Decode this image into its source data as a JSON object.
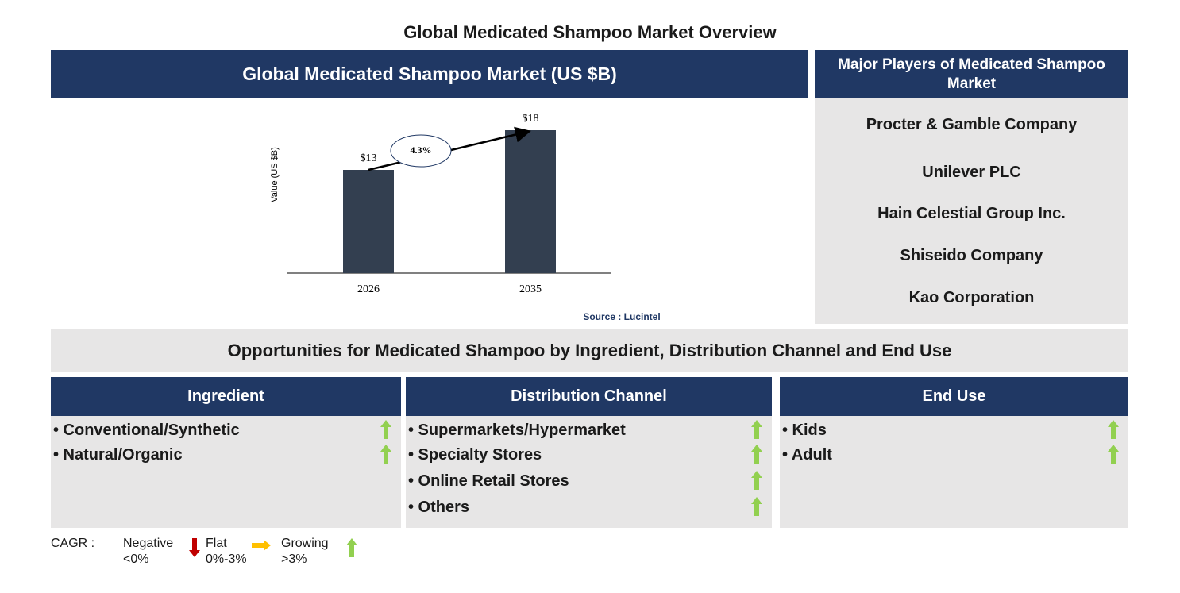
{
  "title": "Global Medicated Shampoo Market Overview",
  "chart_data": {
    "type": "bar",
    "title": "Global Medicated Shampoo Market (US $B)",
    "y_label": "Value (US $B)",
    "categories": [
      "2026",
      "2035"
    ],
    "values": [
      13,
      18
    ],
    "value_labels": [
      "$13",
      "$18"
    ],
    "color": "#333f50",
    "cagr_label": "4.3%",
    "source": "Source : Lucintel"
  },
  "players": {
    "title": "Major Players of Medicated Shampoo Market",
    "items": [
      "Procter & Gamble Company",
      "Unilever PLC",
      "Hain Celestial Group Inc.",
      "Shiseido Company",
      "Kao Corporation"
    ]
  },
  "opportunities": {
    "title": "Opportunities for Medicated Shampoo by Ingredient, Distribution Channel and End Use",
    "columns": [
      {
        "title": "Ingredient",
        "items": [
          {
            "label": "• Conventional/Synthetic",
            "trend": "up"
          },
          {
            "label": "• Natural/Organic",
            "trend": "up"
          }
        ]
      },
      {
        "title": "Distribution Channel",
        "items": [
          {
            "label": "• Supermarkets/Hypermarket",
            "trend": "up"
          },
          {
            "label": "• Specialty Stores",
            "trend": "up"
          },
          {
            "label": "• Online Retail Stores",
            "trend": "up"
          },
          {
            "label": "• Others",
            "trend": "up"
          }
        ]
      },
      {
        "title": "End Use",
        "items": [
          {
            "label": "• Kids",
            "trend": "up"
          },
          {
            "label": "• Adult",
            "trend": "up"
          }
        ]
      }
    ]
  },
  "legend": {
    "label": "CAGR :",
    "entries": [
      {
        "name": "Negative",
        "range": "<0%",
        "trend": "down"
      },
      {
        "name": "Flat",
        "range": "0%-3%",
        "trend": "flat"
      },
      {
        "name": "Growing",
        "range": ">3%",
        "trend": "up"
      }
    ]
  }
}
